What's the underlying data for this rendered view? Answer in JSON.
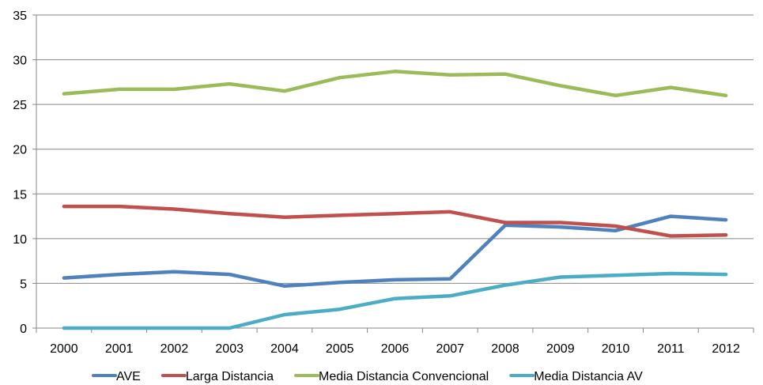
{
  "chart_data": {
    "type": "line",
    "title": "",
    "xlabel": "",
    "ylabel": "",
    "categories": [
      "2000",
      "2001",
      "2002",
      "2003",
      "2004",
      "2005",
      "2006",
      "2007",
      "2008",
      "2009",
      "2010",
      "2011",
      "2012"
    ],
    "ylim": [
      0,
      35
    ],
    "yticks": [
      0,
      5,
      10,
      15,
      20,
      25,
      30,
      35
    ],
    "grid": "horizontal",
    "legend_position": "bottom",
    "series": [
      {
        "name": "AVE",
        "color": "#4F81BD",
        "values": [
          5.6,
          6.0,
          6.3,
          6.0,
          4.7,
          5.1,
          5.4,
          5.5,
          11.5,
          11.3,
          10.9,
          12.5,
          12.1
        ]
      },
      {
        "name": "Larga Distancia",
        "color": "#C0504D",
        "values": [
          13.6,
          13.6,
          13.3,
          12.8,
          12.4,
          12.6,
          12.8,
          13.0,
          11.8,
          11.8,
          11.4,
          10.3,
          10.4
        ]
      },
      {
        "name": "Media Distancia Convencional",
        "color": "#9BBB59",
        "values": [
          26.2,
          26.7,
          26.7,
          27.3,
          26.5,
          28.0,
          28.7,
          28.3,
          28.4,
          27.1,
          26.0,
          26.9,
          26.0
        ]
      },
      {
        "name": "Media Distancia AV",
        "color": "#4BACC6",
        "values": [
          0,
          0,
          0,
          0,
          1.5,
          2.1,
          3.3,
          3.6,
          4.8,
          5.7,
          5.9,
          6.1,
          6.0
        ]
      }
    ]
  }
}
